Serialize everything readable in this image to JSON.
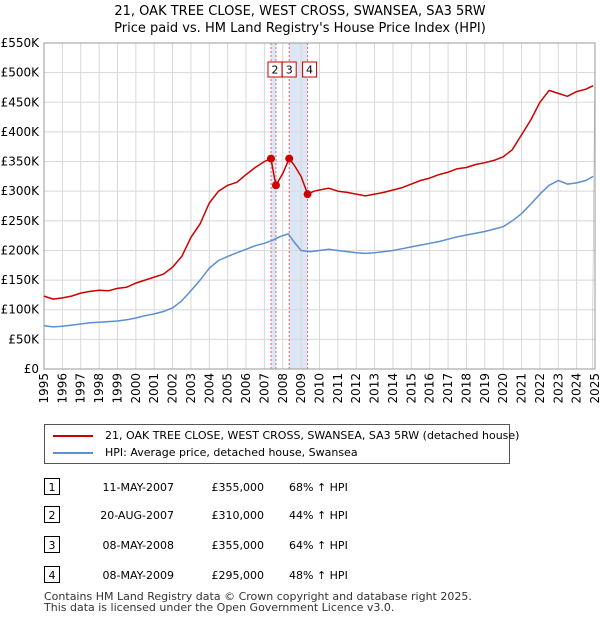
{
  "title_line1": "21, OAK TREE CLOSE, WEST CROSS, SWANSEA, SA3 5RW",
  "title_line2": "Price paid vs. HM Land Registry's House Price Index (HPI)",
  "legend": {
    "property": "21, OAK TREE CLOSE, WEST CROSS, SWANSEA, SA3 5RW (detached house)",
    "hpi": "HPI: Average price, detached house, Swansea"
  },
  "colors": {
    "property": "#cc0000",
    "hpi": "#5b8fd0",
    "band": "#dde6f5",
    "vline": "#e06666",
    "grid": "#d8d8d8"
  },
  "sales": [
    {
      "num": "1",
      "date": "11-MAY-2007",
      "price": "£355,000",
      "hpi": "68% ↑ HPI"
    },
    {
      "num": "2",
      "date": "20-AUG-2007",
      "price": "£310,000",
      "hpi": "44% ↑ HPI"
    },
    {
      "num": "3",
      "date": "08-MAY-2008",
      "price": "£355,000",
      "hpi": "64% ↑ HPI"
    },
    {
      "num": "4",
      "date": "08-MAY-2009",
      "price": "£295,000",
      "hpi": "48% ↑ HPI"
    }
  ],
  "footer_line1": "Contains HM Land Registry data © Crown copyright and database right 2025.",
  "footer_line2": "This data is licensed under the Open Government Licence v3.0.",
  "chart_data": {
    "type": "line",
    "title": "21, OAK TREE CLOSE, WEST CROSS, SWANSEA, SA3 5RW",
    "subtitle": "Price paid vs. HM Land Registry's House Price Index (HPI)",
    "xlim": [
      1995,
      2025
    ],
    "ylim": [
      0,
      550000
    ],
    "y_ticks": [
      0,
      50000,
      100000,
      150000,
      200000,
      250000,
      300000,
      350000,
      400000,
      450000,
      500000,
      550000
    ],
    "y_tick_labels": [
      "£0",
      "£50K",
      "£100K",
      "£150K",
      "£200K",
      "£250K",
      "£300K",
      "£350K",
      "£400K",
      "£450K",
      "£500K",
      "£550K"
    ],
    "x_ticks": [
      1995,
      1996,
      1997,
      1998,
      1999,
      2000,
      2001,
      2002,
      2003,
      2004,
      2005,
      2006,
      2007,
      2008,
      2009,
      2010,
      2011,
      2012,
      2013,
      2014,
      2015,
      2016,
      2017,
      2018,
      2019,
      2020,
      2021,
      2022,
      2023,
      2024,
      2025
    ],
    "x_tick_labels": [
      "1995",
      "1996",
      "1997",
      "1998",
      "1999",
      "2000",
      "2001",
      "2002",
      "2003",
      "2004",
      "2005",
      "2006",
      "2007",
      "2008",
      "2009",
      "2010",
      "2011",
      "2012",
      "2013",
      "2014",
      "2015",
      "2016",
      "2017",
      "2018",
      "2019",
      "2020",
      "2021",
      "2022",
      "2023",
      "2024",
      "2025"
    ],
    "grid": true,
    "legend_position": "bottom",
    "series": [
      {
        "name": "21, OAK TREE CLOSE, WEST CROSS, SWANSEA, SA3 5RW (detached house)",
        "x": [
          1995.0,
          1995.5,
          1996.0,
          1996.5,
          1997.0,
          1997.5,
          1998.0,
          1998.5,
          1999.0,
          1999.5,
          2000.0,
          2000.5,
          2001.0,
          2001.5,
          2002.0,
          2002.5,
          2003.0,
          2003.5,
          2004.0,
          2004.5,
          2005.0,
          2005.5,
          2006.0,
          2006.5,
          2007.0,
          2007.36,
          2007.5,
          2007.63,
          2008.0,
          2008.35,
          2008.6,
          2009.0,
          2009.35,
          2009.7,
          2010.0,
          2010.5,
          2011.0,
          2011.5,
          2012.0,
          2012.5,
          2013.0,
          2013.5,
          2014.0,
          2014.5,
          2015.0,
          2015.5,
          2016.0,
          2016.5,
          2017.0,
          2017.5,
          2018.0,
          2018.5,
          2019.0,
          2019.5,
          2020.0,
          2020.5,
          2021.0,
          2021.5,
          2022.0,
          2022.5,
          2023.0,
          2023.5,
          2024.0,
          2024.5,
          2024.9
        ],
        "values": [
          123000,
          118000,
          120000,
          123000,
          128000,
          131000,
          133000,
          132000,
          136000,
          138000,
          145000,
          150000,
          155000,
          160000,
          172000,
          190000,
          222000,
          245000,
          280000,
          300000,
          310000,
          315000,
          328000,
          340000,
          350000,
          355000,
          330000,
          310000,
          330000,
          355000,
          345000,
          325000,
          295000,
          300000,
          302000,
          305000,
          300000,
          298000,
          295000,
          292000,
          295000,
          298000,
          302000,
          306000,
          312000,
          318000,
          322000,
          328000,
          332000,
          338000,
          340000,
          345000,
          348000,
          352000,
          358000,
          370000,
          395000,
          420000,
          450000,
          470000,
          465000,
          460000,
          468000,
          472000,
          478000
        ]
      },
      {
        "name": "HPI: Average price, detached house, Swansea",
        "x": [
          1995.0,
          1995.5,
          1996.0,
          1996.5,
          1997.0,
          1997.5,
          1998.0,
          1998.5,
          1999.0,
          1999.5,
          2000.0,
          2000.5,
          2001.0,
          2001.5,
          2002.0,
          2002.5,
          2003.0,
          2003.5,
          2004.0,
          2004.5,
          2005.0,
          2005.5,
          2006.0,
          2006.5,
          2007.0,
          2007.5,
          2007.75,
          2008.0,
          2008.3,
          2008.6,
          2009.0,
          2009.5,
          2010.0,
          2010.5,
          2011.0,
          2011.5,
          2012.0,
          2012.5,
          2013.0,
          2013.5,
          2014.0,
          2014.5,
          2015.0,
          2015.5,
          2016.0,
          2016.5,
          2017.0,
          2017.5,
          2018.0,
          2018.5,
          2019.0,
          2019.5,
          2020.0,
          2020.5,
          2021.0,
          2021.5,
          2022.0,
          2022.5,
          2023.0,
          2023.5,
          2024.0,
          2024.5,
          2024.9
        ],
        "values": [
          73000,
          71000,
          72000,
          74000,
          76000,
          78000,
          79000,
          80000,
          81000,
          83000,
          86000,
          90000,
          93000,
          97000,
          103000,
          115000,
          132000,
          150000,
          170000,
          183000,
          190000,
          196000,
          202000,
          208000,
          212000,
          218000,
          222000,
          225000,
          228000,
          215000,
          200000,
          198000,
          200000,
          202000,
          200000,
          198000,
          196000,
          195000,
          196000,
          198000,
          200000,
          203000,
          206000,
          209000,
          212000,
          215000,
          219000,
          223000,
          226000,
          229000,
          232000,
          236000,
          240000,
          250000,
          262000,
          278000,
          295000,
          310000,
          318000,
          312000,
          314000,
          318000,
          325000
        ]
      }
    ],
    "sale_points": [
      {
        "label": "1",
        "x": 2007.36,
        "y": 355000
      },
      {
        "label": "2",
        "x": 2007.63,
        "y": 310000
      },
      {
        "label": "3",
        "x": 2008.35,
        "y": 355000
      },
      {
        "label": "4",
        "x": 2009.35,
        "y": 295000
      }
    ],
    "highlight_bands": [
      [
        2007.36,
        2007.63
      ],
      [
        2008.35,
        2009.35
      ]
    ],
    "marker_boxes": [
      {
        "label": "2",
        "x": 2007.63
      },
      {
        "label": "3",
        "x": 2008.35
      },
      {
        "label": "4",
        "x": 2009.35
      }
    ]
  }
}
